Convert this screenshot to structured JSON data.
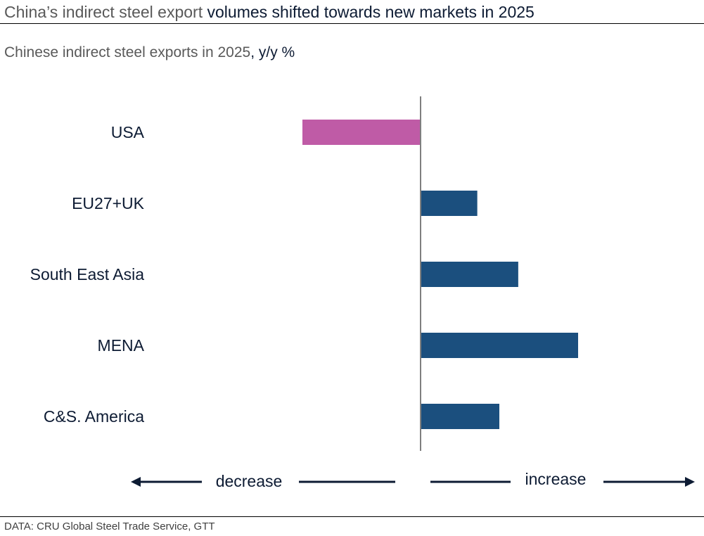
{
  "title": {
    "part1": "China’s indirect steel export",
    "part2": " volumes shifted towards new markets in 2025"
  },
  "subtitle": {
    "part1": "Chinese indirect steel exports in 2025",
    "part2": ", y/y %"
  },
  "source": "DATA: CRU Global Steel Trade Service, GTT",
  "colors": {
    "negative": "#bf5ba6",
    "positive": "#1b4f7e",
    "text": "#0d1b33"
  },
  "chart_data": {
    "type": "bar",
    "orientation": "horizontal",
    "categories": [
      "USA",
      "EU27+UK",
      "South East Asia",
      "MENA",
      "C&S. America"
    ],
    "values": [
      -0.75,
      0.36,
      0.62,
      1.0,
      0.5
    ],
    "value_note": "relative magnitudes; no numeric axis printed",
    "xlabel": "",
    "ylabel": "",
    "grid": false,
    "direction_labels": {
      "left": "decrease",
      "right": "increase"
    }
  }
}
